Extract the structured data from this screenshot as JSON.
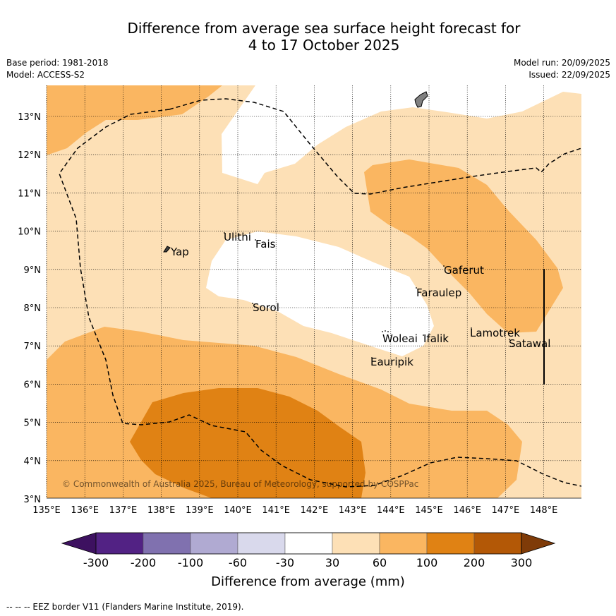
{
  "title": {
    "line1": "Difference from average sea surface height forecast for",
    "line2": "4 to 17 October 2025"
  },
  "meta": {
    "base_period": "Base period: 1981-2018",
    "model": "Model: ACCESS-S2",
    "model_run": "Model run: 20/09/2025",
    "issued": "Issued: 22/09/2025"
  },
  "axes": {
    "lon_labels": [
      "135°E",
      "136°E",
      "137°E",
      "138°E",
      "139°E",
      "140°E",
      "141°E",
      "142°E",
      "143°E",
      "144°E",
      "145°E",
      "146°E",
      "147°E",
      "148°E"
    ],
    "lat_labels": [
      "13°N",
      "12°N",
      "11°N",
      "10°N",
      "9°N",
      "8°N",
      "7°N",
      "6°N",
      "5°N",
      "4°N",
      "3°N"
    ]
  },
  "places": {
    "yap": "Yap",
    "ulithi": "Ulithi",
    "fais": "Fais",
    "sorol": "Sorol",
    "gaferut": "Gaferut",
    "faraulep": "Faraulep",
    "woleai": "Woleai",
    "ifalik": "Ifalik",
    "lamotrek": "Lamotrek",
    "satawal": "Satawal",
    "eauripik": "Eauripik"
  },
  "copyright": "© Commonwealth of Australia 2025, Bureau of Meteorology, supported by COSPPac",
  "colorbar": {
    "ticks": [
      "-300",
      "-200",
      "-100",
      "-60",
      "-30",
      "30",
      "60",
      "100",
      "200",
      "300"
    ],
    "colors": [
      "#3d1160",
      "#522284",
      "#8071af",
      "#b0aad2",
      "#d9d9ec",
      "#ffffff",
      "#fde0b6",
      "#fab661",
      "#e08214",
      "#b35806",
      "#7f3b08"
    ],
    "title": "Difference from average (mm)"
  },
  "legend_footer": "--  --  -- EEZ border V11 (Flanders Marine Institute, 2019).",
  "palette": {
    "band_30_60": "#fde0b6",
    "band_60_100": "#fab661",
    "band_100_200": "#e08214",
    "island": "#808080"
  }
}
